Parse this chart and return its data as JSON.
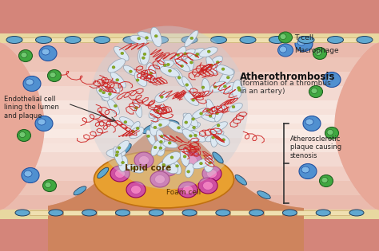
{
  "bg_outer": "#d9a090",
  "bg_wall": "#e8a898",
  "lumen_color": "#fdf5f0",
  "lumen_gradient_top": "#fde8e0",
  "plaque_color": "#c87850",
  "plaque_edge": "#a05030",
  "lipid_color": "#e8a030",
  "lipid_edge": "#c07010",
  "wall_cream": "#f5e8c0",
  "wall_dark_edge": "#c09060",
  "endothelial_cell_color": "#60a8d0",
  "endothelial_cell_edge": "#204060",
  "macrophage_color": "#5090d0",
  "macrophage_edge": "#2050a0",
  "tcell_color": "#40a840",
  "tcell_edge": "#206020",
  "foam_outer": "#d050a0",
  "foam_inner": "#f080c0",
  "platelet_color": "#dce8f2",
  "platelet_edge": "#90a0b0",
  "fibrin_color": "#cc2020",
  "granule_color": "#88aa22",
  "title": "Atherothrombosis",
  "subtitle": "(formation of a thrombus\nin an artery)",
  "label_endothelial": "Endothelial cell\nlining the lumen\nand plaque",
  "label_plaque": "Atherosclerotic\nplaque causing\nstenosis",
  "label_lipid": "Lipid core",
  "label_foam": "Foam cell",
  "label_tcell": "T cell",
  "label_macrophage": "Macrophage"
}
